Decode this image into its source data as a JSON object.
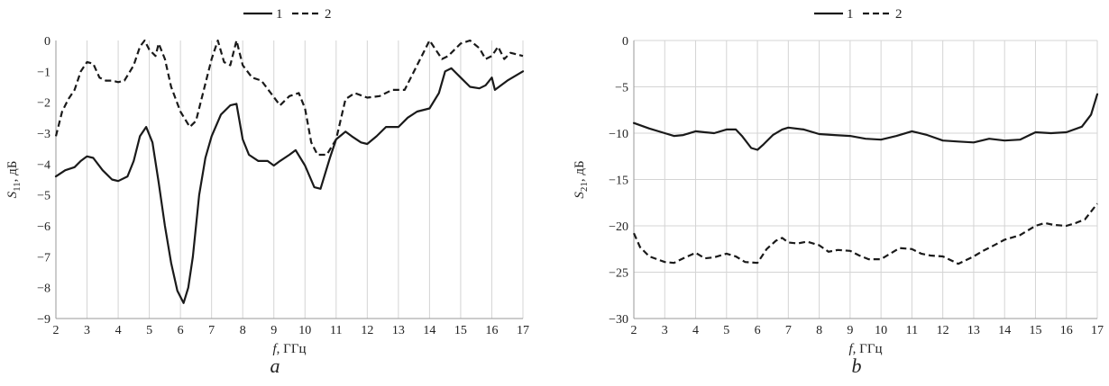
{
  "figure": {
    "panel_labels": [
      "a",
      "b"
    ]
  },
  "colors": {
    "line": "#1a1a1a",
    "grid": "#d4d4d4",
    "text": "#222222"
  },
  "chart_data": [
    {
      "type": "line",
      "panel_label": "a",
      "ylabel_main": "S",
      "ylabel_sub": "11",
      "ylabel_unit": ", дБ",
      "xlabel_var": "f",
      "xlabel_unit": ", ГГц",
      "xlim": [
        2,
        17
      ],
      "ylim": [
        -9,
        0
      ],
      "xticks": [
        2,
        3,
        4,
        5,
        6,
        7,
        8,
        9,
        10,
        11,
        12,
        13,
        14,
        15,
        16,
        17
      ],
      "yticks": [
        0,
        -1,
        -2,
        -3,
        -4,
        -5,
        -6,
        -7,
        -8,
        -9
      ],
      "ytick_labels": [
        "0",
        "−1",
        "−2",
        "−3",
        "−4",
        "−5",
        "−6",
        "−7",
        "−8",
        "−9"
      ],
      "grid": "vertical",
      "legend_position": "top-center",
      "series": [
        {
          "name": "1",
          "style": "solid",
          "x": [
            2.0,
            2.3,
            2.6,
            2.8,
            3.0,
            3.2,
            3.5,
            3.8,
            4.0,
            4.3,
            4.5,
            4.7,
            4.9,
            5.1,
            5.3,
            5.5,
            5.7,
            5.9,
            6.1,
            6.25,
            6.4,
            6.6,
            6.8,
            7.0,
            7.3,
            7.6,
            7.8,
            8.0,
            8.2,
            8.5,
            8.8,
            9.0,
            9.2,
            9.5,
            9.7,
            10.0,
            10.3,
            10.5,
            10.8,
            11.0,
            11.3,
            11.5,
            11.8,
            12.0,
            12.3,
            12.6,
            13.0,
            13.3,
            13.6,
            14.0,
            14.3,
            14.5,
            14.7,
            15.0,
            15.3,
            15.6,
            15.8,
            16.0,
            16.1,
            16.5,
            17.0
          ],
          "y": [
            -4.4,
            -4.2,
            -4.1,
            -3.9,
            -3.75,
            -3.8,
            -4.2,
            -4.5,
            -4.55,
            -4.4,
            -3.9,
            -3.1,
            -2.8,
            -3.3,
            -4.6,
            -6.0,
            -7.2,
            -8.1,
            -8.5,
            -8.0,
            -7.0,
            -5.0,
            -3.8,
            -3.1,
            -2.4,
            -2.1,
            -2.05,
            -3.2,
            -3.7,
            -3.9,
            -3.9,
            -4.05,
            -3.9,
            -3.7,
            -3.55,
            -4.05,
            -4.75,
            -4.8,
            -3.8,
            -3.2,
            -2.95,
            -3.1,
            -3.3,
            -3.35,
            -3.1,
            -2.8,
            -2.8,
            -2.5,
            -2.3,
            -2.2,
            -1.7,
            -1.0,
            -0.9,
            -1.2,
            -1.5,
            -1.55,
            -1.45,
            -1.2,
            -1.6,
            -1.3,
            -1.0
          ]
        },
        {
          "name": "2",
          "style": "dashed",
          "x": [
            2.0,
            2.2,
            2.4,
            2.6,
            2.8,
            3.0,
            3.2,
            3.4,
            3.6,
            3.8,
            4.0,
            4.2,
            4.5,
            4.7,
            4.85,
            5.0,
            5.2,
            5.3,
            5.5,
            5.7,
            6.0,
            6.3,
            6.5,
            6.7,
            7.0,
            7.2,
            7.4,
            7.6,
            7.8,
            8.0,
            8.3,
            8.6,
            8.9,
            9.2,
            9.5,
            9.8,
            10.0,
            10.2,
            10.4,
            10.7,
            11.0,
            11.3,
            11.6,
            12.0,
            12.4,
            12.8,
            13.2,
            13.6,
            14.0,
            14.2,
            14.4,
            14.6,
            15.0,
            15.3,
            15.6,
            15.8,
            16.0,
            16.2,
            16.4,
            16.6,
            17.0
          ],
          "y": [
            -3.1,
            -2.3,
            -1.9,
            -1.6,
            -1.0,
            -0.7,
            -0.75,
            -1.2,
            -1.3,
            -1.3,
            -1.35,
            -1.3,
            -0.8,
            -0.2,
            0.0,
            -0.3,
            -0.5,
            -0.1,
            -0.6,
            -1.5,
            -2.3,
            -2.8,
            -2.6,
            -1.8,
            -0.6,
            0.0,
            -0.7,
            -0.8,
            0.0,
            -0.8,
            -1.2,
            -1.3,
            -1.7,
            -2.1,
            -1.8,
            -1.7,
            -2.2,
            -3.3,
            -3.7,
            -3.7,
            -3.2,
            -1.9,
            -1.7,
            -1.85,
            -1.8,
            -1.6,
            -1.6,
            -0.8,
            0.0,
            -0.3,
            -0.6,
            -0.5,
            -0.1,
            0.0,
            -0.25,
            -0.6,
            -0.5,
            -0.2,
            -0.6,
            -0.4,
            -0.5
          ]
        }
      ]
    },
    {
      "type": "line",
      "panel_label": "b",
      "ylabel_main": "S",
      "ylabel_sub": "21",
      "ylabel_unit": ", дБ",
      "xlabel_var": "f",
      "xlabel_unit": ", ГГц",
      "xlim": [
        2,
        17
      ],
      "ylim": [
        -30,
        0
      ],
      "xticks": [
        2,
        3,
        4,
        5,
        6,
        7,
        8,
        9,
        10,
        11,
        12,
        13,
        14,
        15,
        16,
        17
      ],
      "yticks": [
        0,
        -5,
        -10,
        -15,
        -20,
        -25,
        -30
      ],
      "ytick_labels": [
        "0",
        "−5",
        "−10",
        "−15",
        "−20",
        "−25",
        "−30"
      ],
      "grid": "both",
      "legend_position": "top-center",
      "series": [
        {
          "name": "1",
          "style": "solid",
          "x": [
            2.0,
            2.5,
            3.0,
            3.3,
            3.6,
            4.0,
            4.3,
            4.6,
            5.0,
            5.3,
            5.5,
            5.8,
            6.0,
            6.2,
            6.5,
            6.8,
            7.0,
            7.5,
            8.0,
            8.5,
            9.0,
            9.5,
            10.0,
            10.5,
            11.0,
            11.5,
            12.0,
            12.5,
            13.0,
            13.5,
            14.0,
            14.5,
            15.0,
            15.5,
            16.0,
            16.5,
            16.8,
            17.0
          ],
          "y": [
            -8.9,
            -9.5,
            -10.0,
            -10.3,
            -10.2,
            -9.8,
            -9.9,
            -10.0,
            -9.6,
            -9.6,
            -10.3,
            -11.6,
            -11.8,
            -11.2,
            -10.2,
            -9.6,
            -9.4,
            -9.6,
            -10.1,
            -10.2,
            -10.3,
            -10.6,
            -10.7,
            -10.3,
            -9.8,
            -10.2,
            -10.8,
            -10.9,
            -11.0,
            -10.6,
            -10.8,
            -10.7,
            -9.9,
            -10.0,
            -9.9,
            -9.3,
            -8.0,
            -5.8
          ]
        },
        {
          "name": "2",
          "style": "dashed",
          "x": [
            2.0,
            2.2,
            2.5,
            3.0,
            3.3,
            3.6,
            4.0,
            4.3,
            4.6,
            5.0,
            5.3,
            5.6,
            6.0,
            6.3,
            6.6,
            6.8,
            7.0,
            7.3,
            7.6,
            8.0,
            8.3,
            8.6,
            9.0,
            9.3,
            9.6,
            10.0,
            10.3,
            10.6,
            11.0,
            11.3,
            11.6,
            12.0,
            12.5,
            13.0,
            13.3,
            13.6,
            14.0,
            14.5,
            15.0,
            15.3,
            15.6,
            16.0,
            16.3,
            16.6,
            17.0
          ],
          "y": [
            -20.8,
            -22.3,
            -23.3,
            -23.9,
            -24.0,
            -23.5,
            -22.9,
            -23.5,
            -23.4,
            -23.0,
            -23.3,
            -23.9,
            -24.0,
            -22.5,
            -21.6,
            -21.3,
            -21.8,
            -21.9,
            -21.7,
            -22.1,
            -22.8,
            -22.6,
            -22.7,
            -23.2,
            -23.6,
            -23.6,
            -23.0,
            -22.4,
            -22.5,
            -23.0,
            -23.2,
            -23.3,
            -24.1,
            -23.3,
            -22.7,
            -22.2,
            -21.5,
            -21.0,
            -20.0,
            -19.7,
            -19.9,
            -20.0,
            -19.7,
            -19.3,
            -17.6
          ]
        }
      ]
    }
  ]
}
